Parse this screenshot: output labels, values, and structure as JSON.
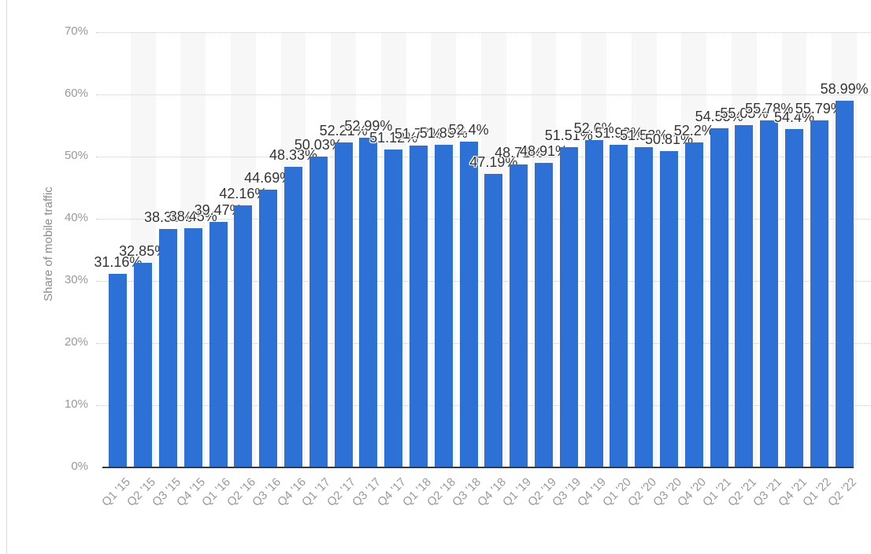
{
  "chart_data": {
    "type": "bar",
    "title": "",
    "xlabel": "",
    "ylabel": "Share of mobile traffic",
    "ylim": [
      0,
      70
    ],
    "yticks": [
      "0%",
      "10%",
      "20%",
      "30%",
      "40%",
      "50%",
      "60%",
      "70%"
    ],
    "ytick_values": [
      0,
      10,
      20,
      30,
      40,
      50,
      60,
      70
    ],
    "grid": "dotted horizontal gridlines at each 10% level",
    "legend": "none",
    "categories": [
      "Q1 '15",
      "Q2 '15",
      "Q3 '15",
      "Q4 '15",
      "Q1 '16",
      "Q2 '16",
      "Q3 '16",
      "Q4 '16",
      "Q1 '17",
      "Q2 '17",
      "Q3 '17",
      "Q4 '17",
      "Q1 '18",
      "Q2 '18",
      "Q3 '18",
      "Q4 '18",
      "Q1 '19",
      "Q2 '19",
      "Q3 '19",
      "Q4 '19",
      "Q1 '20",
      "Q2 '20",
      "Q3 '20",
      "Q4 '20",
      "Q1 '21",
      "Q2 '21",
      "Q3 '21",
      "Q4 '21",
      "Q1 '22",
      "Q2 '22"
    ],
    "values": [
      31.16,
      32.85,
      38.38,
      38.45,
      39.47,
      42.16,
      44.69,
      48.33,
      50.03,
      52.21,
      52.99,
      51.12,
      51.77,
      51.85,
      52.4,
      47.19,
      48.71,
      48.91,
      51.51,
      52.6,
      51.92,
      51.53,
      50.81,
      52.2,
      54.55,
      55.05,
      55.78,
      54.4,
      55.79,
      58.99
    ],
    "data_labels": [
      "31.16%",
      "32.85%",
      "38.38%",
      "38.45%",
      "39.47%",
      "42.16%",
      "44.69%",
      "48.33%",
      "50.03%",
      "52.21%",
      "52.99%",
      "51.12%",
      "51.77%",
      "51.85%",
      "52.4%",
      "47.19%",
      "48.71%",
      "48.91%",
      "51.51%",
      "52.6%",
      "51.92%",
      "51.53%",
      "50.81%",
      "52.2%",
      "54.55%",
      "55.05%",
      "55.78%",
      "54.4%",
      "55.79%",
      "58.99%"
    ],
    "colors": {
      "bar": "#2d70d6",
      "stripe": "#f7f7f7",
      "gridline": "#c9c9c9",
      "axis_line": "#3a3a3a",
      "tick_text": "#999999",
      "value_text": "#333333",
      "y_title_text": "#8c8c8c"
    }
  }
}
